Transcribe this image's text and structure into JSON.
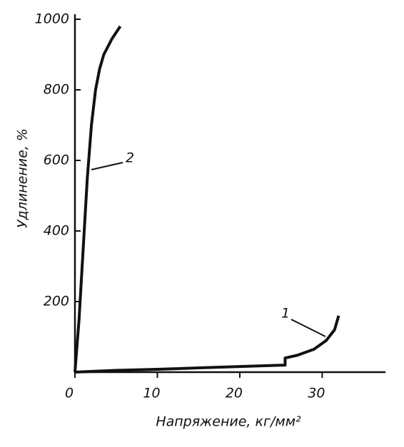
{
  "chart_data": {
    "type": "line",
    "xlabel": "Напряжение, кг/мм²",
    "ylabel": "Удлинение, %",
    "xlim": [
      0,
      37.5
    ],
    "ylim": [
      0,
      1000
    ],
    "xticks": [
      0,
      10,
      20,
      30
    ],
    "yticks": [
      200,
      400,
      600,
      800,
      1000
    ],
    "grid": false,
    "series": [
      {
        "name": "1",
        "color": "#111111",
        "x": [
          0,
          5,
          10,
          15,
          20,
          25.5,
          25.5,
          27,
          29,
          30.5,
          31.5,
          32
        ],
        "values": [
          0,
          5,
          8,
          12,
          16,
          20,
          40,
          48,
          65,
          90,
          120,
          160
        ]
      },
      {
        "name": "2",
        "color": "#111111",
        "x": [
          0,
          0.5,
          1,
          1.5,
          2,
          2.5,
          3,
          3.5,
          4.5,
          5.5
        ],
        "values": [
          0,
          150,
          350,
          550,
          700,
          800,
          860,
          900,
          945,
          980
        ]
      }
    ]
  }
}
